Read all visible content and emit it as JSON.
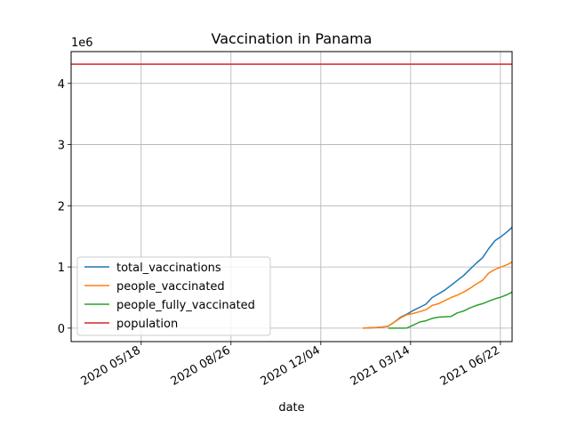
{
  "chart_data": {
    "type": "line",
    "title": "Vaccination in Panama",
    "xlabel": "date",
    "ylabel": "",
    "y_multiplier_label": "1e6",
    "x_range": [
      "2020-03-01",
      "2021-07-05"
    ],
    "ylim": [
      -220000,
      4520000
    ],
    "x_ticks": [
      {
        "date": "2020-05-18",
        "label": "2020 05/18"
      },
      {
        "date": "2020-08-26",
        "label": "2020 08/26"
      },
      {
        "date": "2020-12-04",
        "label": "2020 12/04"
      },
      {
        "date": "2021-03-14",
        "label": "2021 03/14"
      },
      {
        "date": "2021-06-22",
        "label": "2021 06/22"
      }
    ],
    "y_ticks": [
      {
        "value": 0,
        "label": "0"
      },
      {
        "value": 1000000,
        "label": "1"
      },
      {
        "value": 2000000,
        "label": "2"
      },
      {
        "value": 3000000,
        "label": "3"
      },
      {
        "value": 4000000,
        "label": "4"
      }
    ],
    "grid": true,
    "legend_position": "lower-left",
    "series": [
      {
        "name": "total_vaccinations",
        "color": "#1f77b4",
        "points": [
          [
            "2021-01-20",
            0
          ],
          [
            "2021-01-27",
            5000
          ],
          [
            "2021-02-03",
            10000
          ],
          [
            "2021-02-10",
            15000
          ],
          [
            "2021-02-17",
            30000
          ],
          [
            "2021-02-24",
            100000
          ],
          [
            "2021-03-03",
            180000
          ],
          [
            "2021-03-10",
            230000
          ],
          [
            "2021-03-17",
            290000
          ],
          [
            "2021-03-24",
            340000
          ],
          [
            "2021-03-31",
            390000
          ],
          [
            "2021-04-07",
            500000
          ],
          [
            "2021-04-14",
            560000
          ],
          [
            "2021-04-21",
            620000
          ],
          [
            "2021-04-28",
            700000
          ],
          [
            "2021-05-05",
            780000
          ],
          [
            "2021-05-12",
            860000
          ],
          [
            "2021-05-19",
            960000
          ],
          [
            "2021-05-26",
            1060000
          ],
          [
            "2021-06-02",
            1150000
          ],
          [
            "2021-06-09",
            1300000
          ],
          [
            "2021-06-16",
            1430000
          ],
          [
            "2021-06-23",
            1500000
          ],
          [
            "2021-06-30",
            1580000
          ],
          [
            "2021-07-05",
            1650000
          ]
        ]
      },
      {
        "name": "people_vaccinated",
        "color": "#ff7f0e",
        "points": [
          [
            "2021-01-20",
            0
          ],
          [
            "2021-01-27",
            5000
          ],
          [
            "2021-02-03",
            10000
          ],
          [
            "2021-02-10",
            15000
          ],
          [
            "2021-02-17",
            30000
          ],
          [
            "2021-02-24",
            100000
          ],
          [
            "2021-03-03",
            170000
          ],
          [
            "2021-03-10",
            220000
          ],
          [
            "2021-03-17",
            240000
          ],
          [
            "2021-03-24",
            270000
          ],
          [
            "2021-03-31",
            300000
          ],
          [
            "2021-04-07",
            370000
          ],
          [
            "2021-04-14",
            400000
          ],
          [
            "2021-04-21",
            450000
          ],
          [
            "2021-04-28",
            500000
          ],
          [
            "2021-05-05",
            540000
          ],
          [
            "2021-05-12",
            590000
          ],
          [
            "2021-05-19",
            650000
          ],
          [
            "2021-05-26",
            720000
          ],
          [
            "2021-06-02",
            780000
          ],
          [
            "2021-06-09",
            900000
          ],
          [
            "2021-06-16",
            960000
          ],
          [
            "2021-06-23",
            1000000
          ],
          [
            "2021-06-30",
            1040000
          ],
          [
            "2021-07-05",
            1080000
          ]
        ]
      },
      {
        "name": "people_fully_vaccinated",
        "color": "#2ca02c",
        "points": [
          [
            "2021-02-17",
            0
          ],
          [
            "2021-02-24",
            0
          ],
          [
            "2021-03-03",
            0
          ],
          [
            "2021-03-10",
            2000
          ],
          [
            "2021-03-17",
            50000
          ],
          [
            "2021-03-24",
            100000
          ],
          [
            "2021-03-31",
            120000
          ],
          [
            "2021-04-07",
            160000
          ],
          [
            "2021-04-14",
            180000
          ],
          [
            "2021-04-21",
            185000
          ],
          [
            "2021-04-28",
            190000
          ],
          [
            "2021-05-05",
            250000
          ],
          [
            "2021-05-12",
            280000
          ],
          [
            "2021-05-19",
            330000
          ],
          [
            "2021-05-26",
            370000
          ],
          [
            "2021-06-02",
            400000
          ],
          [
            "2021-06-09",
            440000
          ],
          [
            "2021-06-16",
            480000
          ],
          [
            "2021-06-23",
            510000
          ],
          [
            "2021-06-30",
            550000
          ],
          [
            "2021-07-05",
            590000
          ]
        ]
      },
      {
        "name": "population",
        "color": "#d62728",
        "points": [
          [
            "2020-03-01",
            4315000
          ],
          [
            "2021-07-05",
            4315000
          ]
        ]
      }
    ]
  }
}
